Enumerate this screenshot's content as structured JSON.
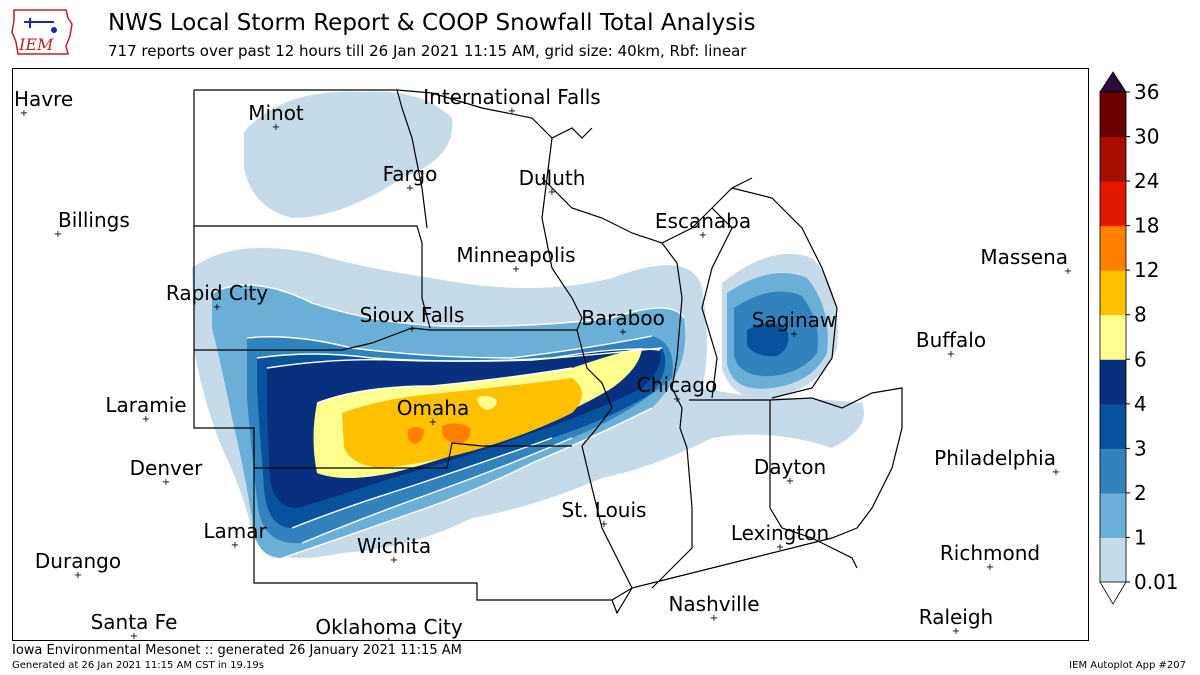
{
  "header": {
    "title": "NWS Local Storm Report & COOP Snowfall Total Analysis",
    "subtitle": "717 reports over past 12 hours till 26 Jan 2021 11:15 AM, grid size: 40km, Rbf: linear",
    "logo_text": "IEM"
  },
  "footer": {
    "generated_line": "Iowa Environmental Mesonet :: generated 26 January 2021 11:15 AM",
    "generated_small": "Generated at 26 Jan 2021 11:15 AM CST in 19.19s",
    "app_label": "IEM Autoplot App #207"
  },
  "colorbar": {
    "levels": [
      "0.01",
      "1",
      "2",
      "3",
      "4",
      "6",
      "8",
      "12",
      "18",
      "24",
      "30",
      "36"
    ],
    "colors": [
      "#c5dbe9",
      "#6baed6",
      "#3182bd",
      "#08519c",
      "#08307f",
      "#ffff90",
      "#ffc000",
      "#ff8000",
      "#e31a00",
      "#a50f00",
      "#6b0000",
      "#2b0a3d"
    ]
  },
  "cities": [
    {
      "name": "Havre"
    },
    {
      "name": "Minot"
    },
    {
      "name": "International Falls"
    },
    {
      "name": "Fargo"
    },
    {
      "name": "Duluth"
    },
    {
      "name": "Billings"
    },
    {
      "name": "Escanaba"
    },
    {
      "name": "Minneapolis"
    },
    {
      "name": "Massena"
    },
    {
      "name": "Rapid City"
    },
    {
      "name": "Sioux Falls"
    },
    {
      "name": "Baraboo"
    },
    {
      "name": "Saginaw"
    },
    {
      "name": "Buffalo"
    },
    {
      "name": "Chicago"
    },
    {
      "name": "Laramie"
    },
    {
      "name": "Omaha"
    },
    {
      "name": "Denver"
    },
    {
      "name": "Dayton"
    },
    {
      "name": "Philadelphia"
    },
    {
      "name": "St. Louis"
    },
    {
      "name": "Lamar"
    },
    {
      "name": "Lexington"
    },
    {
      "name": "Wichita"
    },
    {
      "name": "Richmond"
    },
    {
      "name": "Durango"
    },
    {
      "name": "Nashville"
    },
    {
      "name": "Santa Fe"
    },
    {
      "name": "Raleigh"
    },
    {
      "name": "Oklahoma City"
    }
  ]
}
